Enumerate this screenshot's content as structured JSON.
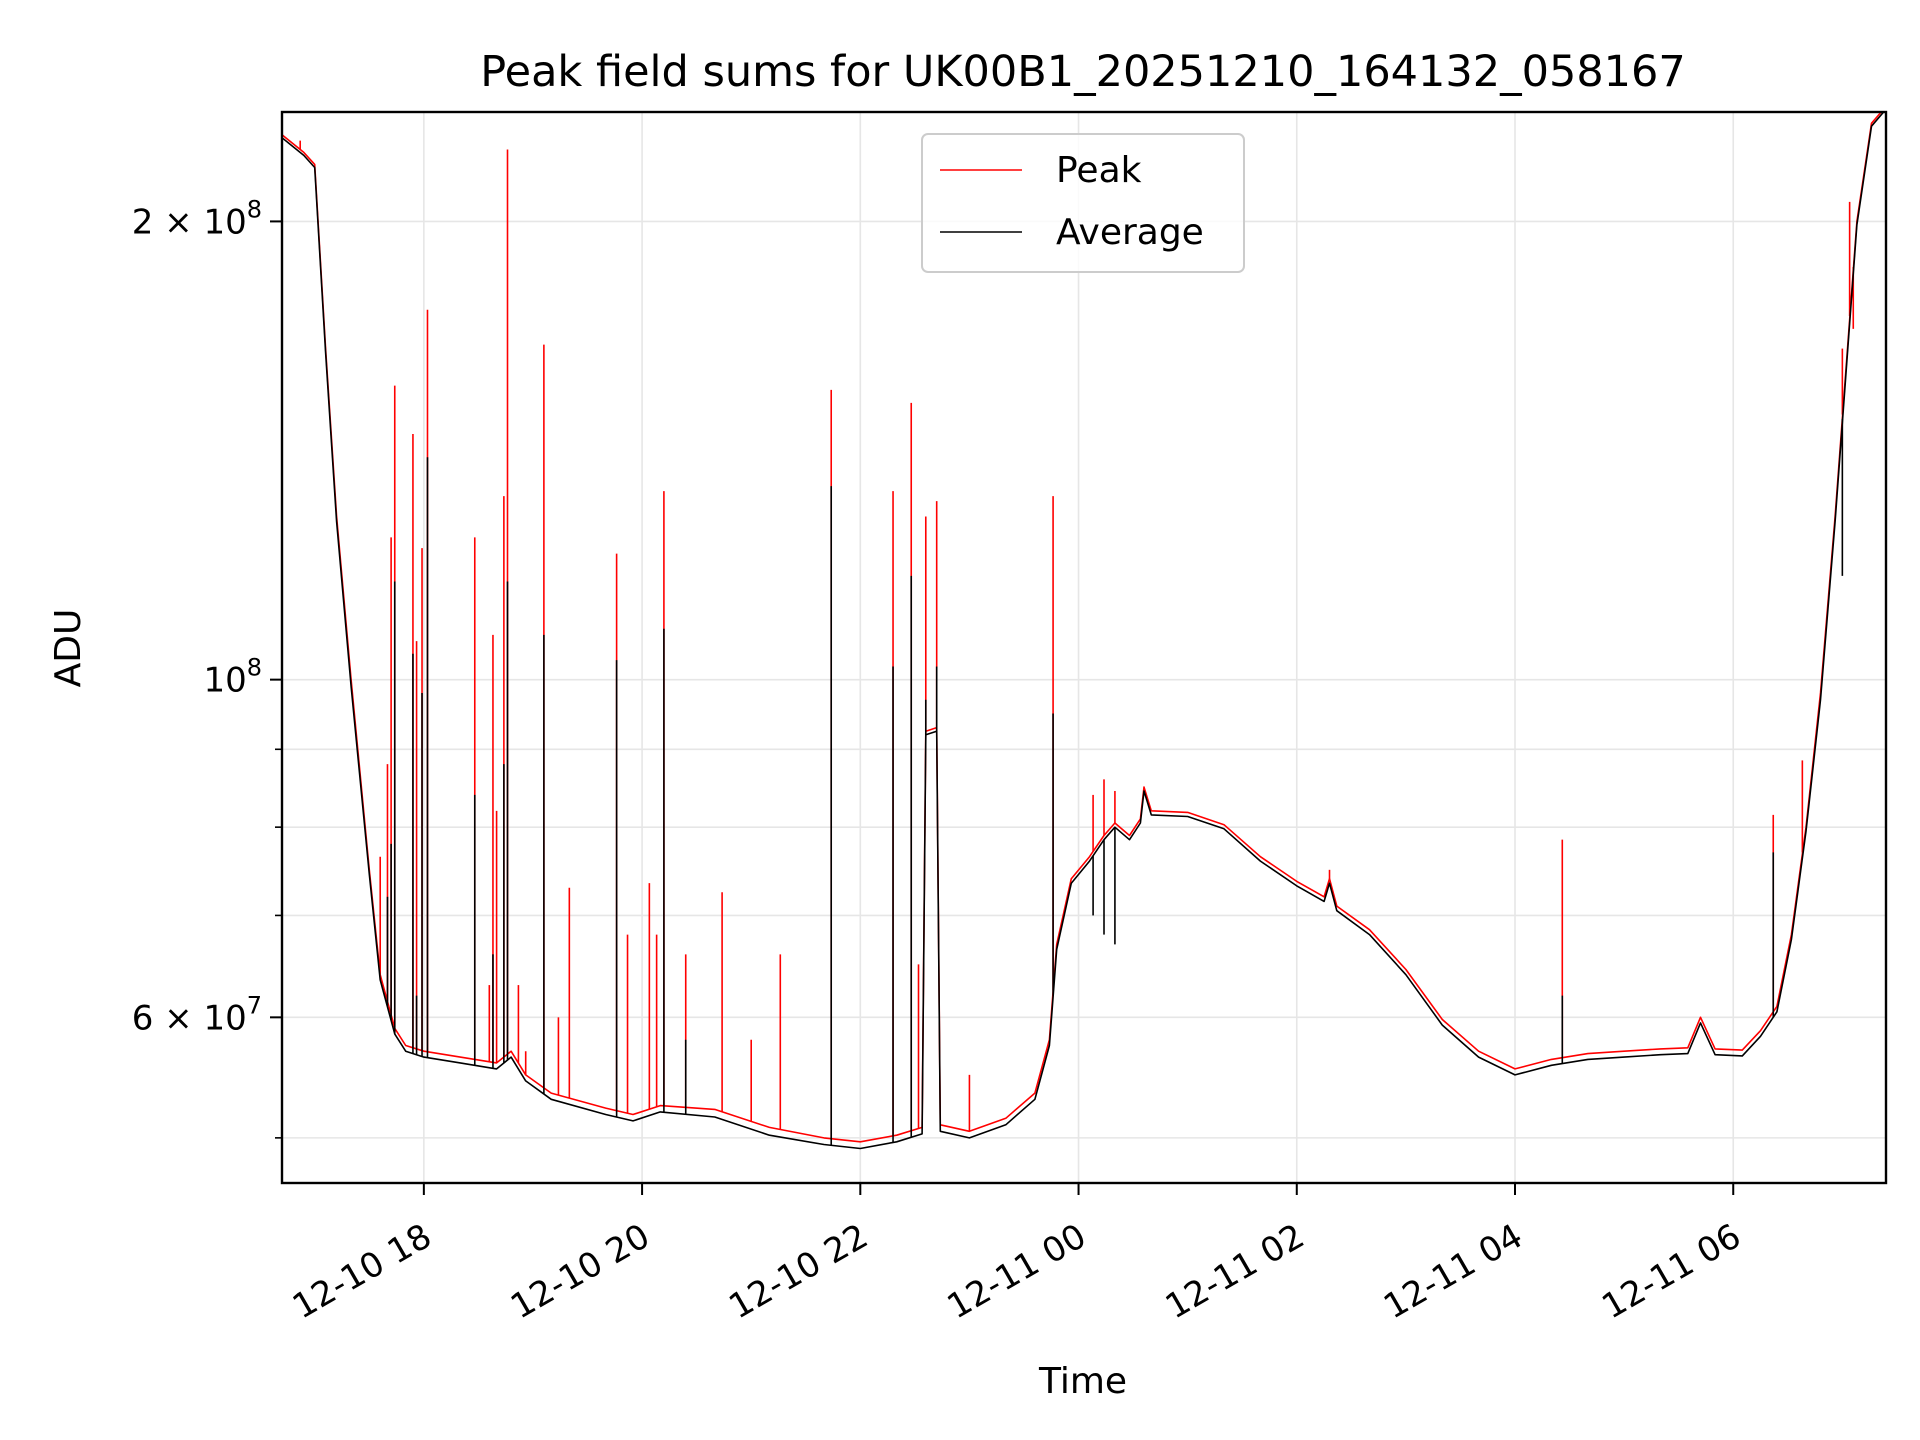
{
  "chart_data": {
    "type": "line",
    "title": "Peak field sums for UK00B1_20251210_164132_058167",
    "xlabel": "Time",
    "ylabel": "ADU",
    "yscale": "log",
    "xlim": [
      "2025-12-10 16:42",
      "2025-12-11 07:24"
    ],
    "ylim": [
      46700000,
      236000000
    ],
    "grid": true,
    "legend_position": "top-center",
    "x_ticks": [
      {
        "label": "12-10 18",
        "value": "2025-12-10 18:00"
      },
      {
        "label": "12-10 20",
        "value": "2025-12-10 20:00"
      },
      {
        "label": "12-10 22",
        "value": "2025-12-10 22:00"
      },
      {
        "label": "12-11 00",
        "value": "2025-12-11 00:00"
      },
      {
        "label": "12-11 02",
        "value": "2025-12-11 02:00"
      },
      {
        "label": "12-11 04",
        "value": "2025-12-11 04:00"
      },
      {
        "label": "12-11 06",
        "value": "2025-12-11 06:00"
      }
    ],
    "y_ticks": [
      {
        "label_base": "2 × 10",
        "label_exp": "8",
        "value": 200000000
      },
      {
        "label_base": "10",
        "label_exp": "8",
        "value": 100000000
      },
      {
        "label_base": "6 × 10",
        "label_exp": "7",
        "value": 60000000
      }
    ],
    "y_minor_ticks": [
      50000000,
      70000000,
      80000000,
      90000000
    ],
    "series": [
      {
        "name": "Peak",
        "color": "#ff0000",
        "baseline": [
          [
            "2025-12-10 16:42",
            228000000
          ],
          [
            "2025-12-10 16:54",
            222000000
          ],
          [
            "2025-12-10 17:00",
            218000000
          ],
          [
            "2025-12-10 17:06",
            165000000
          ],
          [
            "2025-12-10 17:12",
            128000000
          ],
          [
            "2025-12-10 17:20",
            100000000
          ],
          [
            "2025-12-10 17:30",
            75000000
          ],
          [
            "2025-12-10 17:36",
            64000000
          ],
          [
            "2025-12-10 17:44",
            59000000
          ],
          [
            "2025-12-10 17:50",
            57500000
          ],
          [
            "2025-12-10 18:00",
            57000000
          ],
          [
            "2025-12-10 18:20",
            56500000
          ],
          [
            "2025-12-10 18:40",
            56000000
          ],
          [
            "2025-12-10 18:48",
            57000000
          ],
          [
            "2025-12-10 18:56",
            55000000
          ],
          [
            "2025-12-10 19:10",
            53500000
          ],
          [
            "2025-12-10 19:40",
            52300000
          ],
          [
            "2025-12-10 19:55",
            51800000
          ],
          [
            "2025-12-10 20:10",
            52500000
          ],
          [
            "2025-12-10 20:40",
            52200000
          ],
          [
            "2025-12-10 21:10",
            50800000
          ],
          [
            "2025-12-10 21:40",
            50000000
          ],
          [
            "2025-12-10 22:00",
            49700000
          ],
          [
            "2025-12-10 22:20",
            50200000
          ],
          [
            "2025-12-10 22:34",
            50800000
          ],
          [
            "2025-12-10 22:36",
            92500000
          ],
          [
            "2025-12-10 22:42",
            93000000
          ],
          [
            "2025-12-10 22:44",
            51000000
          ],
          [
            "2025-12-10 23:00",
            50500000
          ],
          [
            "2025-12-10 23:20",
            51500000
          ],
          [
            "2025-12-10 23:36",
            53500000
          ],
          [
            "2025-12-10 23:44",
            58000000
          ],
          [
            "2025-12-10 23:48",
            67000000
          ],
          [
            "2025-12-10 23:56",
            74000000
          ],
          [
            "2025-12-11 00:06",
            76500000
          ],
          [
            "2025-12-11 00:14",
            79000000
          ],
          [
            "2025-12-11 00:20",
            80500000
          ],
          [
            "2025-12-11 00:28",
            79000000
          ],
          [
            "2025-12-11 00:34",
            81000000
          ],
          [
            "2025-12-11 00:36",
            85000000
          ],
          [
            "2025-12-11 00:40",
            82000000
          ],
          [
            "2025-12-11 01:00",
            81800000
          ],
          [
            "2025-12-11 01:20",
            80300000
          ],
          [
            "2025-12-11 01:40",
            76500000
          ],
          [
            "2025-12-11 02:00",
            73700000
          ],
          [
            "2025-12-11 02:15",
            72000000
          ],
          [
            "2025-12-11 02:18",
            74000000
          ],
          [
            "2025-12-11 02:22",
            71000000
          ],
          [
            "2025-12-11 02:40",
            68500000
          ],
          [
            "2025-12-11 03:00",
            64500000
          ],
          [
            "2025-12-11 03:20",
            59800000
          ],
          [
            "2025-12-11 03:40",
            57000000
          ],
          [
            "2025-12-11 04:00",
            55500000
          ],
          [
            "2025-12-11 04:20",
            56300000
          ],
          [
            "2025-12-11 04:40",
            56800000
          ],
          [
            "2025-12-11 05:00",
            57000000
          ],
          [
            "2025-12-11 05:20",
            57200000
          ],
          [
            "2025-12-11 05:35",
            57300000
          ],
          [
            "2025-12-11 05:42",
            60000000
          ],
          [
            "2025-12-11 05:50",
            57200000
          ],
          [
            "2025-12-11 06:05",
            57100000
          ],
          [
            "2025-12-11 06:15",
            58800000
          ],
          [
            "2025-12-11 06:24",
            61000000
          ],
          [
            "2025-12-11 06:32",
            68000000
          ],
          [
            "2025-12-11 06:40",
            80000000
          ],
          [
            "2025-12-11 06:48",
            98000000
          ],
          [
            "2025-12-11 06:56",
            128000000
          ],
          [
            "2025-12-11 07:02",
            160000000
          ],
          [
            "2025-12-11 07:08",
            200000000
          ],
          [
            "2025-12-11 07:16",
            232000000
          ],
          [
            "2025-12-11 07:24",
            238000000
          ]
        ],
        "spikes": [
          [
            "2025-12-10 16:52",
            226000000
          ],
          [
            "2025-12-10 17:36",
            76500000
          ],
          [
            "2025-12-10 17:40",
            88000000
          ],
          [
            "2025-12-10 17:42",
            124000000
          ],
          [
            "2025-12-10 17:44",
            156000000
          ],
          [
            "2025-12-10 17:54",
            145000000
          ],
          [
            "2025-12-10 17:56",
            106000000
          ],
          [
            "2025-12-10 17:59",
            122000000
          ],
          [
            "2025-12-10 18:02",
            175000000
          ],
          [
            "2025-12-10 18:28",
            124000000
          ],
          [
            "2025-12-10 18:36",
            63000000
          ],
          [
            "2025-12-10 18:38",
            107000000
          ],
          [
            "2025-12-10 18:40",
            82000000
          ],
          [
            "2025-12-10 18:44",
            132000000
          ],
          [
            "2025-12-10 18:46",
            223000000
          ],
          [
            "2025-12-10 18:52",
            63000000
          ],
          [
            "2025-12-10 18:56",
            57000000
          ],
          [
            "2025-12-10 19:06",
            166000000
          ],
          [
            "2025-12-10 19:14",
            60000000
          ],
          [
            "2025-12-10 19:20",
            73000000
          ],
          [
            "2025-12-10 19:46",
            121000000
          ],
          [
            "2025-12-10 19:52",
            68000000
          ],
          [
            "2025-12-10 20:04",
            73500000
          ],
          [
            "2025-12-10 20:08",
            68000000
          ],
          [
            "2025-12-10 20:12",
            133000000
          ],
          [
            "2025-12-10 20:24",
            66000000
          ],
          [
            "2025-12-10 20:44",
            72500000
          ],
          [
            "2025-12-10 21:00",
            58000000
          ],
          [
            "2025-12-10 21:16",
            66000000
          ],
          [
            "2025-12-10 21:44",
            155000000
          ],
          [
            "2025-12-10 22:18",
            133000000
          ],
          [
            "2025-12-10 22:28",
            152000000
          ],
          [
            "2025-12-10 22:32",
            65000000
          ],
          [
            "2025-12-10 22:36",
            128000000
          ],
          [
            "2025-12-10 22:42",
            131000000
          ],
          [
            "2025-12-10 23:00",
            55000000
          ],
          [
            "2025-12-10 23:46",
            132000000
          ],
          [
            "2025-12-11 00:08",
            84000000
          ],
          [
            "2025-12-11 00:14",
            86000000
          ],
          [
            "2025-12-11 00:20",
            84500000
          ],
          [
            "2025-12-11 02:18",
            75000000
          ],
          [
            "2025-12-11 04:26",
            78500000
          ],
          [
            "2025-12-11 06:22",
            81500000
          ],
          [
            "2025-12-11 06:38",
            88500000
          ],
          [
            "2025-12-11 07:00",
            165000000
          ],
          [
            "2025-12-11 07:04",
            206000000
          ],
          [
            "2025-12-11 07:06",
            170000000
          ]
        ]
      },
      {
        "name": "Average",
        "color": "#000000",
        "baseline": [
          [
            "2025-12-10 16:42",
            227000000
          ],
          [
            "2025-12-10 16:54",
            221000000
          ],
          [
            "2025-12-10 17:00",
            217000000
          ],
          [
            "2025-12-10 17:06",
            164000000
          ],
          [
            "2025-12-10 17:12",
            127000000
          ],
          [
            "2025-12-10 17:20",
            99000000
          ],
          [
            "2025-12-10 17:30",
            74500000
          ],
          [
            "2025-12-10 17:36",
            63500000
          ],
          [
            "2025-12-10 17:44",
            58500000
          ],
          [
            "2025-12-10 17:50",
            57000000
          ],
          [
            "2025-12-10 18:00",
            56500000
          ],
          [
            "2025-12-10 18:20",
            56000000
          ],
          [
            "2025-12-10 18:40",
            55500000
          ],
          [
            "2025-12-10 18:48",
            56500000
          ],
          [
            "2025-12-10 18:56",
            54500000
          ],
          [
            "2025-12-10 19:10",
            53000000
          ],
          [
            "2025-12-10 19:40",
            51800000
          ],
          [
            "2025-12-10 19:55",
            51300000
          ],
          [
            "2025-12-10 20:10",
            52000000
          ],
          [
            "2025-12-10 20:40",
            51600000
          ],
          [
            "2025-12-10 21:10",
            50200000
          ],
          [
            "2025-12-10 21:40",
            49500000
          ],
          [
            "2025-12-10 22:00",
            49200000
          ],
          [
            "2025-12-10 22:20",
            49700000
          ],
          [
            "2025-12-10 22:34",
            50300000
          ],
          [
            "2025-12-10 22:36",
            92000000
          ],
          [
            "2025-12-10 22:42",
            92500000
          ],
          [
            "2025-12-10 22:44",
            50500000
          ],
          [
            "2025-12-10 23:00",
            50000000
          ],
          [
            "2025-12-10 23:20",
            51000000
          ],
          [
            "2025-12-10 23:36",
            53000000
          ],
          [
            "2025-12-10 23:44",
            57500000
          ],
          [
            "2025-12-10 23:48",
            66500000
          ],
          [
            "2025-12-10 23:56",
            73500000
          ],
          [
            "2025-12-11 00:06",
            76000000
          ],
          [
            "2025-12-11 00:14",
            78500000
          ],
          [
            "2025-12-11 00:20",
            80000000
          ],
          [
            "2025-12-11 00:28",
            78500000
          ],
          [
            "2025-12-11 00:34",
            80500000
          ],
          [
            "2025-12-11 00:36",
            84500000
          ],
          [
            "2025-12-11 00:40",
            81500000
          ],
          [
            "2025-12-11 01:00",
            81300000
          ],
          [
            "2025-12-11 01:20",
            79800000
          ],
          [
            "2025-12-11 01:40",
            76000000
          ],
          [
            "2025-12-11 02:00",
            73200000
          ],
          [
            "2025-12-11 02:15",
            71500000
          ],
          [
            "2025-12-11 02:18",
            73500000
          ],
          [
            "2025-12-11 02:22",
            70500000
          ],
          [
            "2025-12-11 02:40",
            68000000
          ],
          [
            "2025-12-11 03:00",
            64000000
          ],
          [
            "2025-12-11 03:20",
            59300000
          ],
          [
            "2025-12-11 03:40",
            56500000
          ],
          [
            "2025-12-11 04:00",
            55000000
          ],
          [
            "2025-12-11 04:20",
            55800000
          ],
          [
            "2025-12-11 04:40",
            56300000
          ],
          [
            "2025-12-11 05:00",
            56500000
          ],
          [
            "2025-12-11 05:20",
            56700000
          ],
          [
            "2025-12-11 05:35",
            56800000
          ],
          [
            "2025-12-11 05:42",
            59500000
          ],
          [
            "2025-12-11 05:50",
            56700000
          ],
          [
            "2025-12-11 06:05",
            56600000
          ],
          [
            "2025-12-11 06:15",
            58300000
          ],
          [
            "2025-12-11 06:24",
            60500000
          ],
          [
            "2025-12-11 06:32",
            67500000
          ],
          [
            "2025-12-11 06:40",
            79500000
          ],
          [
            "2025-12-11 06:48",
            97000000
          ],
          [
            "2025-12-11 06:56",
            127000000
          ],
          [
            "2025-12-11 07:02",
            159000000
          ],
          [
            "2025-12-11 07:08",
            199000000
          ],
          [
            "2025-12-11 07:16",
            231000000
          ],
          [
            "2025-12-11 07:24",
            237000000
          ]
        ],
        "spikes": [
          [
            "2025-12-10 17:40",
            72000000
          ],
          [
            "2025-12-10 17:42",
            78000000
          ],
          [
            "2025-12-10 17:44",
            116000000
          ],
          [
            "2025-12-10 17:54",
            104000000
          ],
          [
            "2025-12-10 17:56",
            62000000
          ],
          [
            "2025-12-10 17:59",
            98000000
          ],
          [
            "2025-12-10 18:02",
            140000000
          ],
          [
            "2025-12-10 18:28",
            84000000
          ],
          [
            "2025-12-10 18:38",
            66000000
          ],
          [
            "2025-12-10 18:44",
            88000000
          ],
          [
            "2025-12-10 18:46",
            116000000
          ],
          [
            "2025-12-10 19:06",
            107000000
          ],
          [
            "2025-12-10 19:46",
            103000000
          ],
          [
            "2025-12-10 20:12",
            108000000
          ],
          [
            "2025-12-10 20:24",
            58000000
          ],
          [
            "2025-12-10 21:44",
            134000000
          ],
          [
            "2025-12-10 22:18",
            102000000
          ],
          [
            "2025-12-10 22:28",
            117000000
          ],
          [
            "2025-12-10 22:36",
            97000000
          ],
          [
            "2025-12-10 22:42",
            102000000
          ],
          [
            "2025-12-10 23:46",
            95000000
          ],
          [
            "2025-12-11 00:08",
            70000000
          ],
          [
            "2025-12-11 00:14",
            68000000
          ],
          [
            "2025-12-11 00:20",
            67000000
          ],
          [
            "2025-12-11 04:26",
            62000000
          ],
          [
            "2025-12-11 06:22",
            77000000
          ],
          [
            "2025-12-11 07:00",
            117000000
          ]
        ]
      }
    ]
  }
}
